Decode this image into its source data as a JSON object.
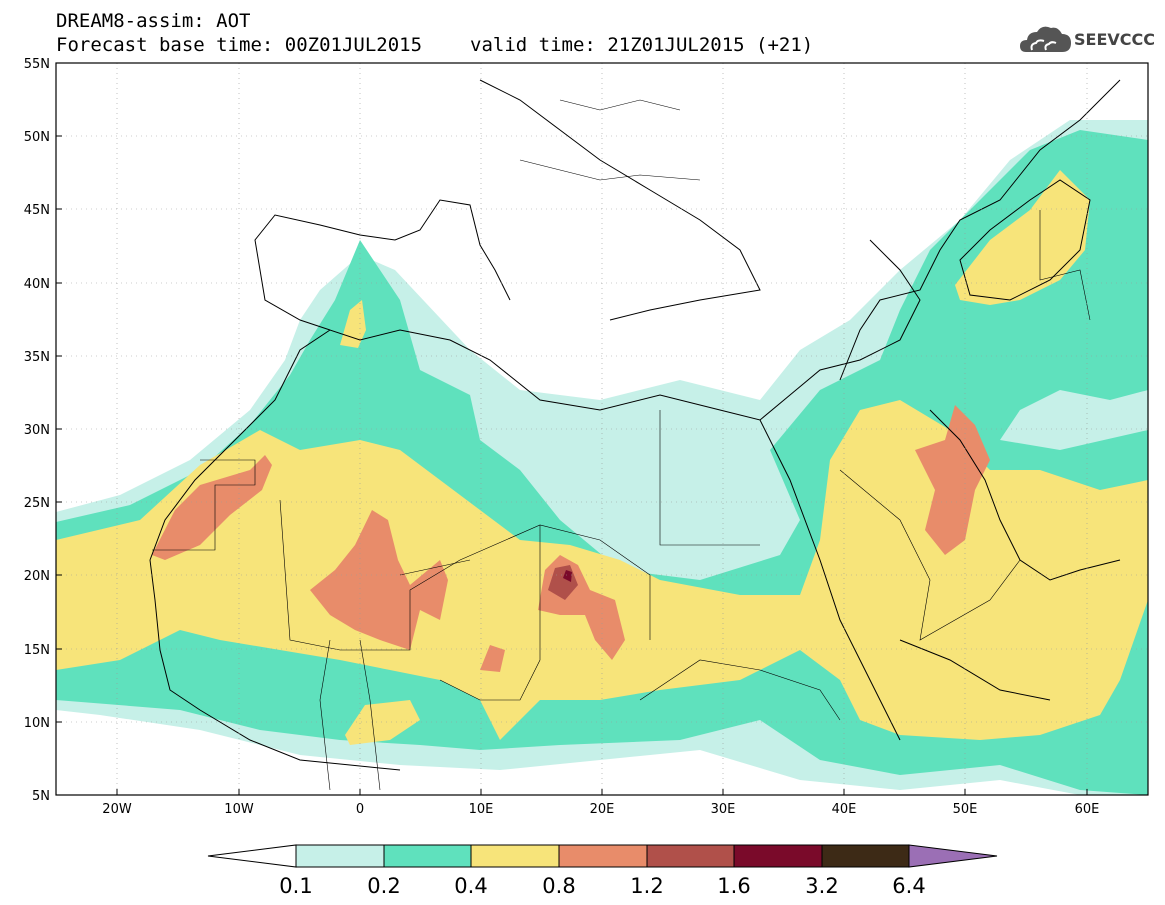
{
  "header": {
    "title": "DREAM8-assim: AOT",
    "base_time": "Forecast base time: 00Z01JUL2015",
    "valid_time": "valid time: 21Z01JUL2015 (+21)"
  },
  "logo": {
    "text": "SEEVCCC",
    "icon": "cloud-icon"
  },
  "map": {
    "lon_range": [
      -25,
      65
    ],
    "lat_range": [
      5,
      55
    ],
    "lat_ticks": [
      "5N",
      "10N",
      "15N",
      "20N",
      "25N",
      "30N",
      "35N",
      "40N",
      "45N",
      "50N",
      "55N"
    ],
    "lon_ticks": [
      "20W",
      "10W",
      "0",
      "10E",
      "20E",
      "30E",
      "40E",
      "50E",
      "60E"
    ]
  },
  "colorbar": {
    "labels": [
      "0.1",
      "0.2",
      "0.4",
      "0.8",
      "1.2",
      "1.6",
      "3.2",
      "6.4"
    ],
    "colors": [
      "#ffffff",
      "#c6f0e8",
      "#5fe1bd",
      "#f7e47a",
      "#e88c6a",
      "#b0504a",
      "#7a0a2a",
      "#3d2a16",
      "#9b6fb5"
    ]
  }
}
